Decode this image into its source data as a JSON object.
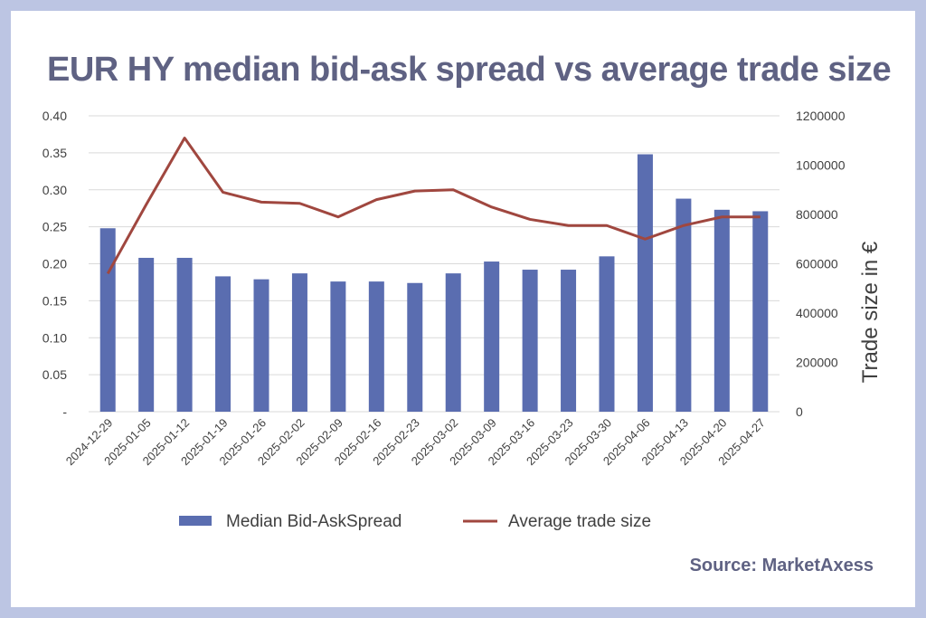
{
  "title": "EUR HY median bid-ask spread vs average trade size",
  "source": "Source: MarketAxess",
  "colors": {
    "background_frame": "#bcc5e3",
    "title_text": "#5f6283",
    "bar": "#5a6db0",
    "line": "#a0473f",
    "grid": "#d9d9d9",
    "axis_text": "#404040"
  },
  "chart_data": {
    "type": "bar+line",
    "categories": [
      "2024-12-29",
      "2025-01-05",
      "2025-01-12",
      "2025-01-19",
      "2025-01-26",
      "2025-02-02",
      "2025-02-09",
      "2025-02-16",
      "2025-02-23",
      "2025-03-02",
      "2025-03-09",
      "2025-03-16",
      "2025-03-23",
      "2025-03-30",
      "2025-04-06",
      "2025-04-13",
      "2025-04-20",
      "2025-04-27"
    ],
    "series": [
      {
        "name": "Median Bid-AskSpread",
        "type": "bar",
        "axis": "left",
        "values": [
          0.248,
          0.208,
          0.208,
          0.183,
          0.179,
          0.187,
          0.176,
          0.176,
          0.174,
          0.187,
          0.203,
          0.192,
          0.192,
          0.21,
          0.348,
          0.288,
          0.273,
          0.271
        ]
      },
      {
        "name": "Average trade size",
        "type": "line",
        "axis": "right",
        "values": [
          560000,
          840000,
          1110000,
          890000,
          850000,
          845000,
          790000,
          860000,
          895000,
          900000,
          830000,
          780000,
          755000,
          755000,
          700000,
          755000,
          790000,
          790000
        ]
      }
    ],
    "y_left": {
      "label": "",
      "ylim": [
        0,
        0.4
      ],
      "ticks": [
        "-",
        "0.05",
        "0.10",
        "0.15",
        "0.20",
        "0.25",
        "0.30",
        "0.35",
        "0.40"
      ]
    },
    "y_right": {
      "label": "Trade size in €",
      "ylim": [
        0,
        1200000
      ],
      "ticks": [
        "0",
        "200000",
        "400000",
        "600000",
        "800000",
        "1000000",
        "1200000"
      ]
    },
    "xlabel": "",
    "grid": "horizontal",
    "legend_position": "bottom-center"
  }
}
